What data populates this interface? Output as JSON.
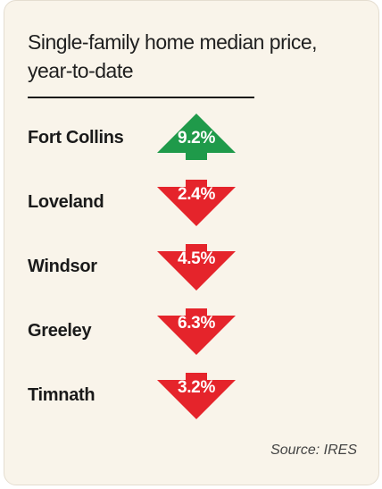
{
  "title": "Single-family home median price, year-to-date",
  "source": "Source: IRES",
  "colors": {
    "up": "#1f9a4a",
    "down": "#e5242b"
  },
  "chart_data": {
    "type": "table",
    "title": "Single-family home median price, year-to-date",
    "rows": [
      {
        "city": "Fort Collins",
        "change_label": "9.2%",
        "change": 9.2,
        "direction": "up"
      },
      {
        "city": "Loveland",
        "change_label": "2.4%",
        "change": -2.4,
        "direction": "down"
      },
      {
        "city": "Windsor",
        "change_label": "4.5%",
        "change": -4.5,
        "direction": "down"
      },
      {
        "city": "Greeley",
        "change_label": "6.3%",
        "change": -6.3,
        "direction": "down"
      },
      {
        "city": "Timnath",
        "change_label": "3.2%",
        "change": -3.2,
        "direction": "down"
      }
    ]
  }
}
